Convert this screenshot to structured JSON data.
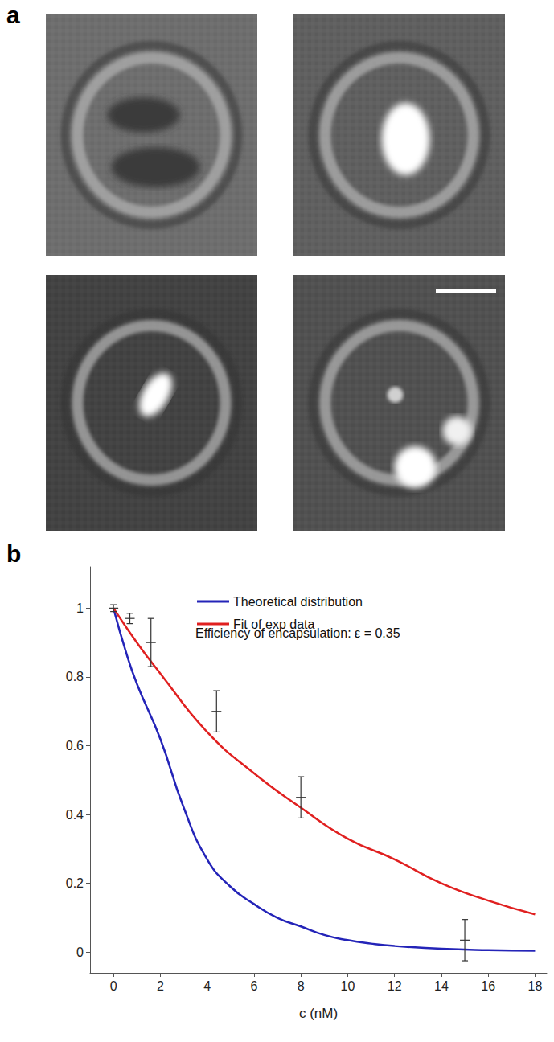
{
  "panel_labels": [
    "a",
    "b"
  ],
  "chart_data": {
    "type": "line",
    "xlabel": "c (nM)",
    "annotation": "Efficiency of encapsulation: ε = 0.35",
    "xlim": [
      -1,
      18.5
    ],
    "xticks": [
      0,
      2,
      4,
      6,
      8,
      10,
      12,
      14,
      16,
      18
    ],
    "ylim": [
      -0.06,
      1.12
    ],
    "yticks": [
      0,
      0.2,
      0.4,
      0.6,
      0.8,
      1
    ],
    "grid": false,
    "legend": "top",
    "series": [
      {
        "name": "Theoretical distribution",
        "type": "line",
        "color": "#2424b8",
        "line_style": "solid",
        "x": [
          0,
          0.5,
          1,
          2,
          3,
          4,
          5,
          6,
          7,
          8,
          9,
          10,
          11,
          12,
          14,
          16,
          18
        ],
        "values": [
          1,
          0.88,
          0.78,
          0.62,
          0.42,
          0.27,
          0.19,
          0.14,
          0.1,
          0.075,
          0.05,
          0.035,
          0.025,
          0.018,
          0.01,
          0.006,
          0.004
        ]
      },
      {
        "name": "Fit of exp data",
        "type": "line",
        "color": "#e02020",
        "line_style": "solid",
        "x": [
          0,
          1,
          2,
          4,
          6,
          8,
          10,
          12,
          14,
          16,
          18
        ],
        "values": [
          1,
          0.9,
          0.81,
          0.64,
          0.52,
          0.42,
          0.33,
          0.27,
          0.2,
          0.15,
          0.11
        ]
      },
      {
        "type": "scatter",
        "color": "#333333",
        "marker": "dash",
        "x": [
          0,
          0.7,
          1.6,
          4.4,
          8,
          15
        ],
        "values": [
          1,
          0.97,
          0.9,
          0.7,
          0.45,
          0.035
        ],
        "y_err": [
          0.01,
          0.015,
          0.07,
          0.06,
          0.06,
          0.06
        ]
      }
    ]
  }
}
